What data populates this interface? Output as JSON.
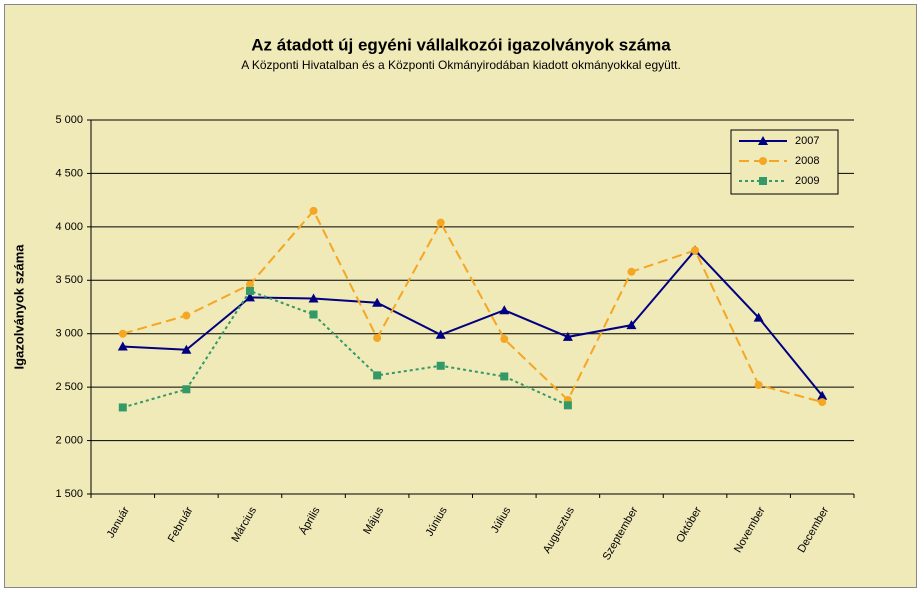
{
  "chart_data": {
    "type": "line",
    "title": "Az átadott új egyéni vállalkozói  igazolványok száma",
    "subtitle": "A Központi Hivatalban és a Központi Okmányirodában kiadott okmányokkal együtt.",
    "y_label": "Igazolványok száma",
    "categories": [
      "Január",
      "Február",
      "Március",
      "Április",
      "Május",
      "Június",
      "Július",
      "Augusztus",
      "Szeptember",
      "Október",
      "November",
      "December"
    ],
    "series": [
      {
        "name": "2007",
        "color": "#000080",
        "line_style": "solid",
        "marker": "triangle",
        "values": [
          2880,
          2850,
          3340,
          3330,
          3290,
          2990,
          3220,
          2970,
          3080,
          3780,
          3150,
          2420
        ]
      },
      {
        "name": "2008",
        "color": "#f5a623",
        "line_style": "dashed",
        "marker": "circle",
        "values": [
          3000,
          3170,
          3460,
          4150,
          2960,
          4040,
          2950,
          2380,
          3580,
          3780,
          2520,
          2360
        ]
      },
      {
        "name": "2009",
        "color": "#339966",
        "line_style": "dotted",
        "marker": "square",
        "values": [
          2310,
          2480,
          3400,
          3180,
          2610,
          2700,
          2600,
          2330,
          null,
          null,
          null,
          null
        ]
      }
    ],
    "ylim": [
      1500,
      5000
    ],
    "yticks": [
      {
        "value": 1500,
        "label": "1 500"
      },
      {
        "value": 2000,
        "label": "2 000"
      },
      {
        "value": 2500,
        "label": "2 500"
      },
      {
        "value": 3000,
        "label": "3 000"
      },
      {
        "value": 3500,
        "label": "3 500"
      },
      {
        "value": 4000,
        "label": "4 000"
      },
      {
        "value": 4500,
        "label": "4 500"
      },
      {
        "value": 5000,
        "label": "5 000"
      }
    ],
    "grid": true,
    "legend": "upper right"
  }
}
